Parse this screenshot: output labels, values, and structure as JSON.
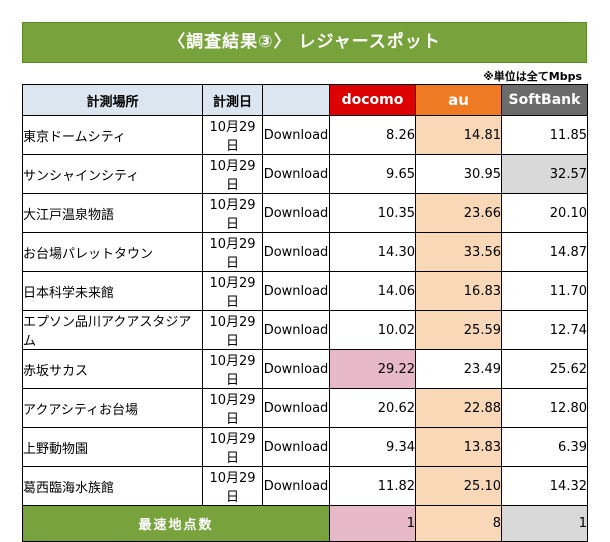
{
  "title": "〈調査結果③〉 レジャースポット",
  "unit_note": "※単位は全てMbps",
  "headers": {
    "place": "計測場所",
    "date": "計測日",
    "type": "",
    "docomo": "docomo",
    "au": "au",
    "softbank": "SoftBank"
  },
  "colors": {
    "banner": "#77a23c",
    "docomo": "#dd0000",
    "au": "#ee7a24",
    "softbank": "#6b6b6b",
    "highlight_docomo": "#e6b8c8",
    "highlight_au": "#f9d8b8",
    "highlight_softbank": "#d9d9d9"
  },
  "rows": [
    {
      "place": "東京ドームシティ",
      "date": "10月29日",
      "type": "Download",
      "docomo": "8.26",
      "au": "14.81",
      "softbank": "11.85",
      "fastest": "au"
    },
    {
      "place": "サンシャインシティ",
      "date": "10月29日",
      "type": "Download",
      "docomo": "9.65",
      "au": "30.95",
      "softbank": "32.57",
      "fastest": "softbank"
    },
    {
      "place": "大江戸温泉物語",
      "date": "10月29日",
      "type": "Download",
      "docomo": "10.35",
      "au": "23.66",
      "softbank": "20.10",
      "fastest": "au"
    },
    {
      "place": "お台場パレットタウン",
      "date": "10月29日",
      "type": "Download",
      "docomo": "14.30",
      "au": "33.56",
      "softbank": "14.87",
      "fastest": "au"
    },
    {
      "place": "日本科学未来館",
      "date": "10月29日",
      "type": "Download",
      "docomo": "14.06",
      "au": "16.83",
      "softbank": "11.70",
      "fastest": "au"
    },
    {
      "place": "エプソン品川アクアスタジアム",
      "date": "10月29日",
      "type": "Download",
      "docomo": "10.02",
      "au": "25.59",
      "softbank": "12.74",
      "fastest": "au"
    },
    {
      "place": "赤坂サカス",
      "date": "10月29日",
      "type": "Download",
      "docomo": "29.22",
      "au": "23.49",
      "softbank": "25.62",
      "fastest": "docomo"
    },
    {
      "place": "アクアシティお台場",
      "date": "10月29日",
      "type": "Download",
      "docomo": "20.62",
      "au": "22.88",
      "softbank": "12.80",
      "fastest": "au"
    },
    {
      "place": "上野動物園",
      "date": "10月29日",
      "type": "Download",
      "docomo": "9.34",
      "au": "13.83",
      "softbank": "6.39",
      "fastest": "au"
    },
    {
      "place": "葛西臨海水族館",
      "date": "10月29日",
      "type": "Download",
      "docomo": "11.82",
      "au": "25.10",
      "softbank": "14.32",
      "fastest": "au"
    }
  ],
  "footer": {
    "label": "最速地点数",
    "docomo": "1",
    "au": "8",
    "softbank": "1"
  }
}
